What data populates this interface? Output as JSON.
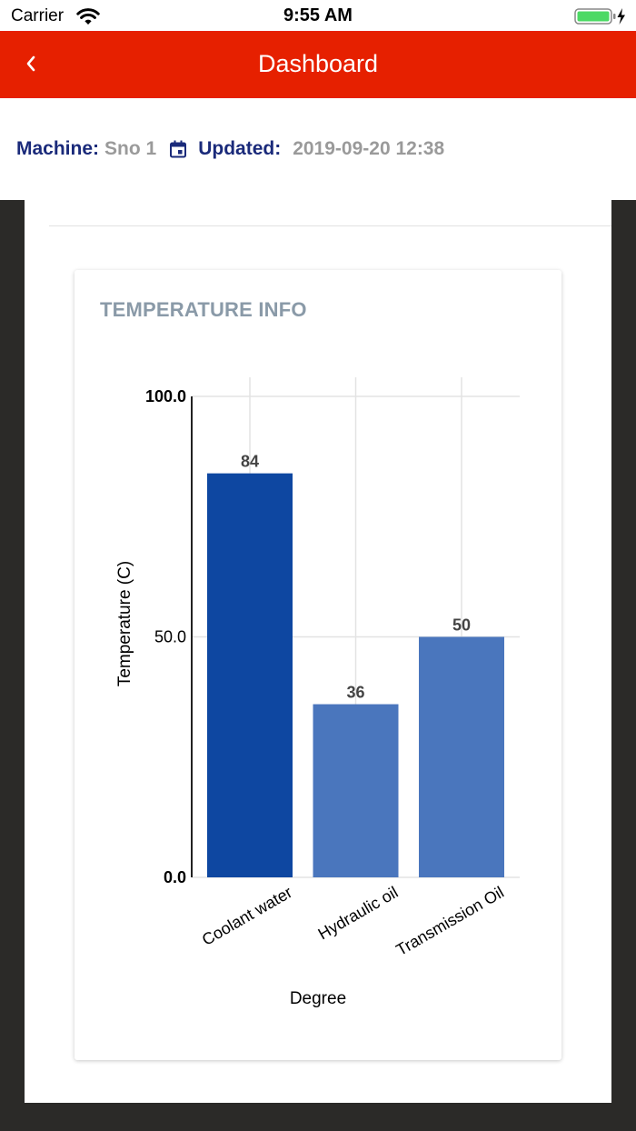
{
  "status_bar": {
    "carrier": "Carrier",
    "time": "9:55 AM"
  },
  "nav": {
    "title": "Dashboard"
  },
  "machine_info": {
    "machine_label": "Machine:",
    "machine_value": "Sno 1",
    "updated_label": "Updated:",
    "updated_value": "2019-09-20 12:38"
  },
  "card": {
    "title": "TEMPERATURE INFO"
  },
  "colors": {
    "nav": "#e62000",
    "primary_bar": "#0e47a1",
    "secondary_bar": "#4a76bd"
  },
  "chart_data": {
    "type": "bar",
    "categories": [
      "Coolant water",
      "Hydraulic oil",
      "Transmission Oil"
    ],
    "values": [
      84,
      36,
      50
    ],
    "data_labels": [
      "84",
      "36",
      "50"
    ],
    "bar_colors": [
      "#0e47a1",
      "#4a76bd",
      "#4a76bd"
    ],
    "ylim": [
      0,
      100
    ],
    "yticks": [
      0,
      50,
      100
    ],
    "ytick_labels": [
      "0.0",
      "50.0",
      "100.0"
    ],
    "xlabel": "Degree",
    "ylabel": "Temperature (C)",
    "grid": true
  }
}
